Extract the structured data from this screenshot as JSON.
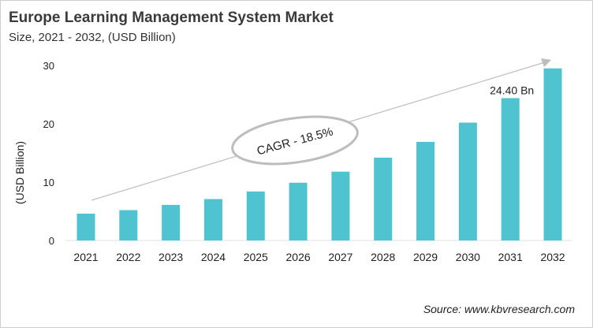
{
  "chart_data": {
    "type": "bar",
    "title": "Europe Learning Management System Market",
    "subtitle": "Size, 2021 - 2032, (USD Billion)",
    "xlabel": "",
    "ylabel": "(USD Billion)",
    "categories": [
      "2021",
      "2022",
      "2023",
      "2024",
      "2025",
      "2026",
      "2027",
      "2028",
      "2029",
      "2030",
      "2031",
      "2032"
    ],
    "values": [
      4.6,
      5.2,
      6.1,
      7.1,
      8.4,
      9.9,
      11.8,
      14.2,
      16.9,
      20.2,
      24.4,
      29.5
    ],
    "ylim": [
      0,
      30
    ],
    "yticks": [
      0,
      10,
      20,
      30
    ],
    "grid": false,
    "bar_color": "#4fc3cf",
    "annotations": {
      "data_label": "24.40 Bn",
      "data_label_category": "2031",
      "cagr": "CAGR - 18.5%"
    },
    "source": "Source: www.kbvresearch.com"
  }
}
